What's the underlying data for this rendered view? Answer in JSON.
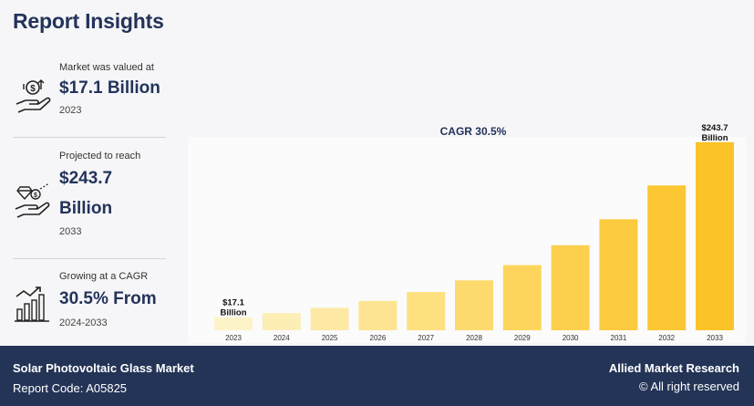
{
  "title": "Report Insights",
  "panels": {
    "valued": {
      "label": "Market was valued at",
      "value": "$17.1 Billion",
      "year": "2023",
      "icon": "money-hand-icon"
    },
    "projected": {
      "label": "Projected to reach",
      "value_line1": "$243.7",
      "value_line2": "Billion",
      "year": "2033",
      "icon": "diamond-hand-icon"
    },
    "cagr": {
      "label": "Growing at a CAGR",
      "value": "30.5% From",
      "year": "2024-2033",
      "icon": "growth-chart-icon"
    }
  },
  "chart_data": {
    "type": "bar",
    "title": "CAGR 30.5%",
    "categories": [
      "2023",
      "2024",
      "2025",
      "2026",
      "2027",
      "2028",
      "2029",
      "2030",
      "2031",
      "2032",
      "2033"
    ],
    "values": [
      17.1,
      22.3,
      29.1,
      38.0,
      49.6,
      64.7,
      84.4,
      110.2,
      143.8,
      187.6,
      243.7
    ],
    "annotations": [
      {
        "category": "2023",
        "text_line1": "$17.1",
        "text_line2": "Billion"
      },
      {
        "category": "2033",
        "text_line1": "$243.7",
        "text_line2": "Billion"
      }
    ],
    "xlabel": "",
    "ylabel": "",
    "ylim": [
      0,
      260
    ],
    "grid": false,
    "colors": [
      "#fdf3c8",
      "#fdeeb6",
      "#fde9a4",
      "#fde492",
      "#fde080",
      "#fdda6e",
      "#fdd55c",
      "#fdd04e",
      "#fdcb40",
      "#fcc733",
      "#fbc328"
    ]
  },
  "footer": {
    "market": "Solar Photovoltaic Glass Market",
    "report_code": "Report Code: A05825",
    "brand": "Allied Market Research",
    "rights": "© All right reserved"
  },
  "colors": {
    "navy": "#243457",
    "title": "#23335a"
  }
}
